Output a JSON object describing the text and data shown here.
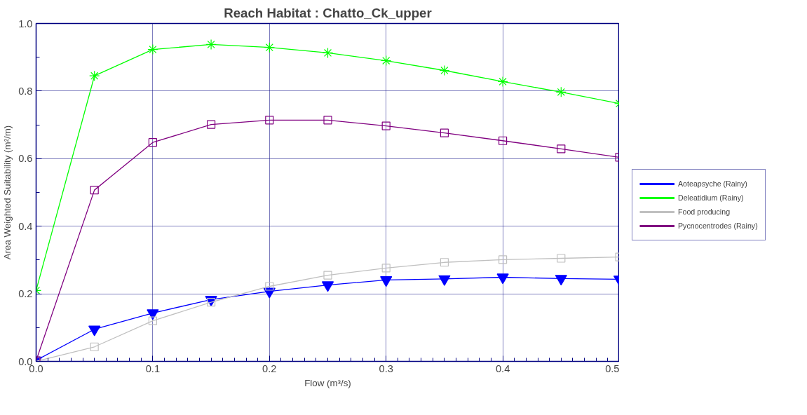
{
  "chart_data": {
    "type": "line",
    "title": "Reach Habitat : Chatto_Ck_upper",
    "xlabel": "Flow (m³/s)",
    "ylabel": "Area Weighted Suitability (m²/m)",
    "x": [
      0,
      0.05,
      0.1,
      0.15,
      0.2,
      0.25,
      0.3,
      0.35,
      0.4,
      0.45,
      0.5
    ],
    "xlim": [
      0,
      0.5
    ],
    "xticks": [
      {
        "value": 0,
        "label": "0.0"
      },
      0.1,
      0.2,
      0.3,
      0.4,
      0.5
    ],
    "ylim": [
      0,
      1
    ],
    "yticks": [
      {
        "value": 0,
        "label": "0.0"
      },
      0.2,
      0.4,
      0.6,
      0.8,
      {
        "value": 1,
        "label": "1.0"
      }
    ],
    "grid": true,
    "legend": "right",
    "series": [
      {
        "name": "Aoteapsyche (Rainy)",
        "color": "#0000ff",
        "marker": "triangle",
        "values": [
          0.003,
          0.095,
          0.143,
          0.183,
          0.207,
          0.226,
          0.241,
          0.244,
          0.249,
          0.245,
          0.243
        ]
      },
      {
        "name": "Deleatidium (Rainy)",
        "color": "#00ff00",
        "marker": "cross",
        "values": [
          0.21,
          0.845,
          0.923,
          0.938,
          0.929,
          0.913,
          0.89,
          0.861,
          0.828,
          0.797,
          0.763
        ]
      },
      {
        "name": "Food producing",
        "color": "#c0c0c0",
        "marker": "square",
        "values": [
          0.0,
          0.043,
          0.12,
          0.175,
          0.222,
          0.255,
          0.276,
          0.293,
          0.301,
          0.305,
          0.309
        ]
      },
      {
        "name": "Pycnocentrodes (Rainy)",
        "color": "#800080",
        "marker": "square",
        "values": [
          0.002,
          0.507,
          0.648,
          0.701,
          0.714,
          0.714,
          0.697,
          0.676,
          0.653,
          0.629,
          0.604
        ]
      }
    ]
  }
}
